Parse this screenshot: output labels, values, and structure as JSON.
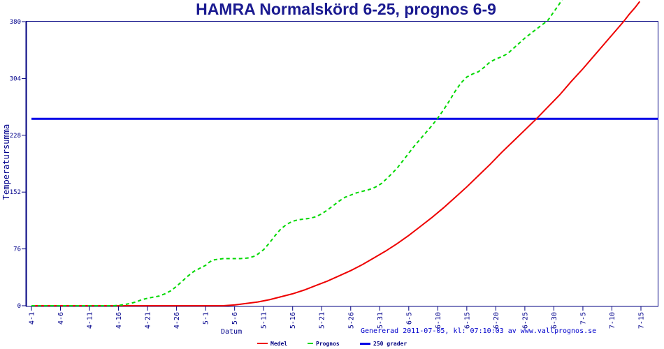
{
  "chart_data": {
    "type": "line",
    "title": "HAMRA Normalskörd 6-25, prognos 6-9",
    "xlabel": "Datum",
    "ylabel": "Temperatursumma",
    "footer": "Genererad 2011-07-05, kl: 07:10:03 av www.vallprognos.se",
    "axis_color": "#000080",
    "axis_text_color": "#00008b",
    "ylim": [
      0,
      380
    ],
    "yticks": [
      0,
      76,
      152,
      228,
      304,
      380
    ],
    "x_days_from": "4-1",
    "xtick_days": [
      0,
      5,
      10,
      15,
      20,
      25,
      30,
      35,
      40,
      45,
      50,
      55,
      60,
      65,
      70,
      75,
      80,
      85,
      90,
      95,
      100,
      105
    ],
    "xtick_labels": [
      "4-1",
      "4-6",
      "4-11",
      "4-16",
      "4-21",
      "4-26",
      "5-1",
      "5-6",
      "5-11",
      "5-16",
      "5-21",
      "5-26",
      "5-31",
      "6-5",
      "6-10",
      "6-15",
      "6-20",
      "6-25",
      "6-30",
      "7-5",
      "7-10",
      "7-15"
    ],
    "legend_position": "bottom",
    "grid": false,
    "series": [
      {
        "name": "Medel",
        "color": "#ee0000",
        "style": "solid",
        "width": 2,
        "draw_order": 2,
        "points": [
          [
            0,
            0
          ],
          [
            8,
            0
          ],
          [
            16,
            0
          ],
          [
            24,
            0
          ],
          [
            30,
            0
          ],
          [
            33,
            0
          ],
          [
            35,
            1
          ],
          [
            37,
            3
          ],
          [
            39,
            5
          ],
          [
            41,
            8
          ],
          [
            43,
            12
          ],
          [
            45,
            16
          ],
          [
            47,
            21
          ],
          [
            49,
            27
          ],
          [
            51,
            33
          ],
          [
            53,
            40
          ],
          [
            55,
            47
          ],
          [
            57,
            55
          ],
          [
            59,
            64
          ],
          [
            61,
            73
          ],
          [
            63,
            83
          ],
          [
            65,
            94
          ],
          [
            67,
            106
          ],
          [
            69,
            118
          ],
          [
            71,
            131
          ],
          [
            73,
            145
          ],
          [
            75,
            159
          ],
          [
            77,
            174
          ],
          [
            79,
            189
          ],
          [
            81,
            205
          ],
          [
            83,
            220
          ],
          [
            85,
            235
          ],
          [
            87,
            250
          ],
          [
            89,
            266
          ],
          [
            91,
            282
          ],
          [
            93,
            300
          ],
          [
            95,
            317
          ],
          [
            97,
            335
          ],
          [
            99,
            353
          ],
          [
            101,
            371
          ],
          [
            102,
            380
          ],
          [
            103,
            390
          ],
          [
            104,
            399
          ],
          [
            104.8,
            407
          ]
        ]
      },
      {
        "name": "Prognos",
        "color": "#00d800",
        "style": "dashed",
        "width": 2,
        "draw_order": 3,
        "points": [
          [
            0,
            0
          ],
          [
            4,
            0
          ],
          [
            8,
            0
          ],
          [
            12,
            0
          ],
          [
            14,
            0
          ],
          [
            15,
            0.5
          ],
          [
            16,
            1.5
          ],
          [
            17,
            3
          ],
          [
            18,
            5
          ],
          [
            19,
            8
          ],
          [
            20,
            10
          ],
          [
            21,
            11.5
          ],
          [
            22,
            13
          ],
          [
            23,
            16
          ],
          [
            24,
            20
          ],
          [
            25,
            26
          ],
          [
            26,
            33
          ],
          [
            27,
            40
          ],
          [
            28,
            46
          ],
          [
            29,
            50
          ],
          [
            30,
            54
          ],
          [
            30.6,
            58
          ],
          [
            31.2,
            61
          ],
          [
            32,
            62
          ],
          [
            33,
            63
          ],
          [
            34.5,
            63
          ],
          [
            36,
            63
          ],
          [
            37.5,
            64
          ],
          [
            38.3,
            66
          ],
          [
            39,
            69
          ],
          [
            40,
            75
          ],
          [
            41,
            84
          ],
          [
            42,
            94
          ],
          [
            43,
            103
          ],
          [
            44,
            109
          ],
          [
            45,
            113
          ],
          [
            46,
            115
          ],
          [
            47,
            116
          ],
          [
            48,
            117
          ],
          [
            49,
            119
          ],
          [
            50,
            123
          ],
          [
            51,
            128
          ],
          [
            52,
            134
          ],
          [
            53,
            140
          ],
          [
            54,
            145
          ],
          [
            55,
            148
          ],
          [
            56,
            151
          ],
          [
            57,
            153
          ],
          [
            58,
            155
          ],
          [
            58.8,
            157
          ],
          [
            59.6,
            160
          ],
          [
            60.4,
            164
          ],
          [
            61.2,
            170
          ],
          [
            62,
            176
          ],
          [
            63,
            184
          ],
          [
            64,
            194
          ],
          [
            65,
            204
          ],
          [
            66,
            214
          ],
          [
            67,
            223
          ],
          [
            68,
            232
          ],
          [
            69,
            241
          ],
          [
            70,
            251
          ],
          [
            71,
            262
          ],
          [
            72,
            274
          ],
          [
            73,
            287
          ],
          [
            74,
            298
          ],
          [
            75,
            306
          ],
          [
            76,
            310
          ],
          [
            77,
            313
          ],
          [
            78,
            319
          ],
          [
            79,
            326
          ],
          [
            80,
            330
          ],
          [
            81,
            333
          ],
          [
            82,
            337
          ],
          [
            83,
            344
          ],
          [
            84,
            351
          ],
          [
            85,
            358
          ],
          [
            86,
            364
          ],
          [
            87,
            370
          ],
          [
            88,
            376
          ],
          [
            88.9,
            381
          ],
          [
            89.8,
            391
          ],
          [
            90.8,
            402
          ],
          [
            91.4,
            409
          ]
        ]
      },
      {
        "name": "250 grader",
        "color": "#0000e6",
        "style": "solid",
        "width": 3,
        "draw_order": 1,
        "points": [
          [
            0,
            250
          ],
          [
            108,
            250
          ]
        ]
      }
    ]
  }
}
